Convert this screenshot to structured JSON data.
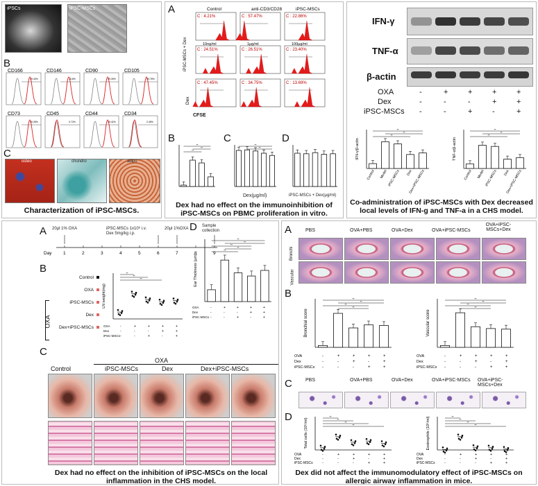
{
  "p1": {
    "cell_labels": [
      "iPSCs",
      "iPSC-MSCs"
    ],
    "markers": [
      "CD166",
      "CD146",
      "CD90",
      "CD105",
      "CD73",
      "CD45",
      "CD44",
      "CD34"
    ],
    "marker_values": [
      "99.43%",
      "76.8%",
      "99.39%",
      "99.78%",
      "99.28%",
      "0.72%",
      "99.42%",
      "2.45%"
    ],
    "diff_labels": [
      "osteo",
      "chondro",
      "adipo"
    ],
    "caption": "Characterization of iPSC-MSCs.",
    "letters": [
      "B",
      "C"
    ]
  },
  "p2": {
    "letters": [
      "A",
      "B",
      "C",
      "D"
    ],
    "col_labels": [
      "Control",
      "anti-CD3/CD28",
      "iPSC-MSCs"
    ],
    "row1_pct": [
      "C : 4.21%",
      "C : 57.47%",
      "C : 22.86%"
    ],
    "row2_pct": [
      "C : 24.51%",
      "C : 26.51%",
      "C : 23.40%"
    ],
    "row3_pct": [
      "C : 47.45%",
      "C : 34.75%",
      "C : 13.69%"
    ],
    "dose_labels": [
      "10ng/ml",
      "1µg/ml",
      "100µg/ml"
    ],
    "row_labels": [
      "iPSC-MSCs + Dex",
      "Dex"
    ],
    "cfse": "CFSE",
    "xlabel_c": "Dex(µg/ml)",
    "xlabel_d": "iPSC-MSCs + Dex(µg/ml)",
    "caption": "Dex had no effect on the immunoinhibition of iPSC-MSCs on PBMC proliferation in vitro."
  },
  "p3": {
    "blots": [
      "IFN-γ",
      "TNF-α",
      "β-actin"
    ],
    "rows": [
      {
        "name": "OXA",
        "vals": [
          "-",
          "+",
          "+",
          "+",
          "+"
        ]
      },
      {
        "name": "Dex",
        "vals": [
          "-",
          "-",
          "-",
          "+",
          "+"
        ]
      },
      {
        "name": "iPSC-MSCs",
        "vals": [
          "-",
          "-",
          "+",
          "-",
          "+"
        ]
      }
    ],
    "ylabel_left": "IFN-γ/β-actin",
    "ylabel_right": "TNF-α/β-actin",
    "groups": [
      "Control",
      "Model",
      "iPSC-MSCs",
      "Dex",
      "Dex+iPSC-MSCs"
    ],
    "caption": "Co-administration of iPSC-MSCs with Dex decreased local levels of IFN-g and TNF-a in a CHS model."
  },
  "p4": {
    "letters": [
      "A",
      "B",
      "C",
      "D"
    ],
    "timeline": {
      "t1": "20µl 1% OXA",
      "t2": "iPSC-MSCs 1x10⁶ i.v.",
      "t2b": "Dex 5mg/kg i.p.",
      "t3": "20µl 1%OXA",
      "t4": "Sample collection",
      "day": "Day",
      "days": [
        "1",
        "2",
        "3",
        "4",
        "5",
        "6",
        "7",
        "8",
        "9"
      ]
    },
    "b_groups": [
      "Control",
      "OXA",
      "iPSC-MSCs",
      "Dex",
      "Dex+iPSC-MSCs"
    ],
    "b_side": "OXA",
    "b_ylabel": "LN weight(mg)",
    "d_ylabel": "Ear Thickness (µm)",
    "c_labels": [
      "Control",
      "OXA",
      "iPSC-MSCs",
      "Dex",
      "Dex+iPSC-MSCs"
    ],
    "sign_rows": [
      {
        "name": "OXA",
        "vals": [
          "-",
          "+",
          "+",
          "+",
          "+"
        ]
      },
      {
        "name": "Dex",
        "vals": [
          "-",
          "-",
          "-",
          "+",
          "+"
        ]
      },
      {
        "name": "iPSC-MSCs",
        "vals": [
          "-",
          "-",
          "+",
          "-",
          "+"
        ]
      }
    ],
    "caption": "Dex had no effect on the inhibition of iPSC-MSCs on the local inflammation in the CHS model."
  },
  "p5": {
    "letters": [
      "A",
      "B",
      "C",
      "D"
    ],
    "groups": [
      "PBS",
      "OVA+PBS",
      "OVA+Dex",
      "OVA+iPSC-MSCs",
      "OVA+iPSC-MSCs+Dex"
    ],
    "row_labels": [
      "Bronchi",
      "Vascular"
    ],
    "b_ylabels": [
      "Bronchial score",
      "Vascular score"
    ],
    "d_ylabels": [
      "Total cells (10⁵/ml)",
      "Eosinophils (10⁵/ml)"
    ],
    "sign_rows": [
      {
        "name": "OVA",
        "vals": [
          "-",
          "+",
          "+",
          "+",
          "+"
        ]
      },
      {
        "name": "Dex",
        "vals": [
          "-",
          "-",
          "+",
          "-",
          "+"
        ]
      },
      {
        "name": "iPSC-MSCs",
        "vals": [
          "-",
          "-",
          "-",
          "+",
          "+"
        ]
      }
    ],
    "caption": "Dex did not affect the immunomodulatory effect of iPSC-MSCs on allergic airway inflammation in mice."
  },
  "chart_data": [
    {
      "type": "bar",
      "title": "",
      "categories": [
        "Control",
        "Model",
        "iPSC-MSCs",
        "Dex",
        "Dex+iPSC-MSCs"
      ],
      "values": [
        0.25,
        1.38,
        1.27,
        0.72,
        0.8
      ],
      "ylabel": "IFN-γ/β-actin",
      "ylim": [
        0,
        2.0
      ]
    },
    {
      "type": "bar",
      "title": "",
      "categories": [
        "Control",
        "Model",
        "iPSC-MSCs",
        "Dex",
        "Dex+iPSC-MSCs"
      ],
      "values": [
        0.3,
        1.5,
        1.42,
        0.6,
        0.7
      ],
      "ylabel": "TNF-α/β-actin",
      "ylim": [
        0,
        2.5
      ]
    },
    {
      "type": "bar",
      "title": "",
      "categories": [
        "",
        "",
        "",
        "",
        ""
      ],
      "values": [
        130,
        132,
        128,
        120,
        112
      ],
      "ylabel": "",
      "ylim": [
        0,
        150
      ]
    },
    {
      "type": "bar",
      "title": "",
      "categories": [
        "",
        "",
        "",
        "",
        ""
      ],
      "values": [
        120,
        118,
        122,
        116,
        118
      ],
      "ylabel": "",
      "ylim": [
        0,
        150
      ]
    },
    {
      "type": "bar",
      "title": "",
      "categories": [
        "",
        "",
        "",
        ""
      ],
      "values": [
        5,
        95,
        85,
        35
      ],
      "ylabel": "",
      "ylim": [
        0,
        150
      ]
    },
    {
      "type": "bar",
      "title": "",
      "categories": [
        "",
        "",
        "",
        "",
        ""
      ],
      "values": [
        38,
        133,
        92,
        82,
        100
      ],
      "ylabel": "Ear Thickness (µm)",
      "ylim": [
        0,
        200
      ]
    },
    {
      "type": "scatter",
      "title": "",
      "categories": [
        "",
        "",
        "",
        "",
        ""
      ],
      "values": [
        3,
        11,
        8.5,
        7.5,
        8
      ],
      "ylabel": "LN weight(mg)",
      "ylim": [
        0,
        20
      ]
    },
    {
      "type": "bar",
      "title": "",
      "categories": [
        "",
        "",
        "",
        "",
        ""
      ],
      "values": [
        0.15,
        2.8,
        1.6,
        1.85,
        1.8
      ],
      "ylabel": "Bronchial score",
      "ylim": [
        0,
        4
      ]
    },
    {
      "type": "bar",
      "title": "",
      "categories": [
        "",
        "",
        "",
        "",
        ""
      ],
      "values": [
        0.15,
        2.85,
        1.7,
        1.55,
        1.5
      ],
      "ylabel": "Vascular score",
      "ylim": [
        0,
        4
      ]
    },
    {
      "type": "scatter",
      "title": "",
      "categories": [
        "",
        "",
        "",
        "",
        ""
      ],
      "values": [
        2,
        12,
        7,
        8,
        6
      ],
      "ylabel": "Total cells (10⁵/ml)",
      "ylim": [
        0,
        30
      ]
    },
    {
      "type": "scatter",
      "title": "",
      "categories": [
        "",
        "",
        "",
        "",
        ""
      ],
      "values": [
        0.2,
        6,
        1.2,
        1,
        0.4
      ],
      "ylabel": "Eosinophils (10⁵/ml)",
      "ylim": [
        0,
        15
      ]
    }
  ]
}
